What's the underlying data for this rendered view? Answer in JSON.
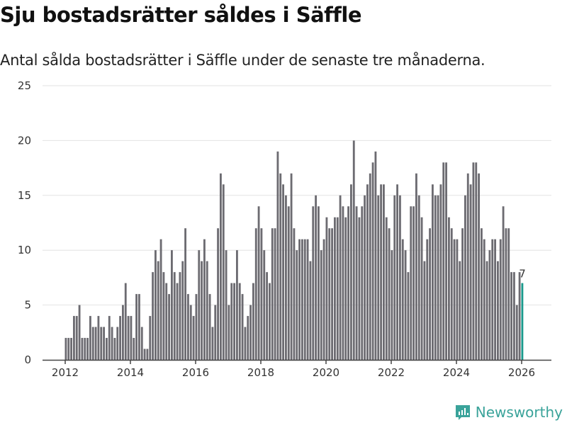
{
  "header": {
    "title": "Sju bostadsrätter såldes i Säffle",
    "subtitle": "Antal sålda bostadsrätter i Säffle under de senaste tre månaderna."
  },
  "footer": {
    "brand": "Newsworthy",
    "logo_icon": "bar-chart-speech-bubble-icon"
  },
  "colors": {
    "bar": "#6c6b71",
    "highlight": "#1a9a8c",
    "grid": "#e2e2e2",
    "axis": "#444444",
    "brand": "#3aa39a"
  },
  "chart_data": {
    "type": "bar",
    "title": "Sju bostadsrätter såldes i Säffle",
    "subtitle": "Antal sålda bostadsrätter i Säffle under de senaste tre månaderna.",
    "xlabel": "",
    "ylabel": "",
    "ylim": [
      0,
      25
    ],
    "yticks": [
      0,
      5,
      10,
      15,
      20,
      25
    ],
    "xticks": [
      "2012",
      "2014",
      "2016",
      "2018",
      "2020",
      "2022",
      "2024",
      "2026"
    ],
    "grid": true,
    "start": "2012-01",
    "frequency": "monthly",
    "highlight_last": true,
    "last_value_label": "7",
    "values": [
      2,
      2,
      2,
      4,
      4,
      5,
      2,
      2,
      2,
      4,
      3,
      3,
      4,
      3,
      3,
      2,
      4,
      3,
      2,
      3,
      4,
      5,
      7,
      4,
      4,
      2,
      6,
      6,
      3,
      1,
      1,
      4,
      8,
      10,
      9,
      11,
      8,
      7,
      6,
      10,
      8,
      7,
      8,
      9,
      12,
      6,
      5,
      4,
      6,
      10,
      9,
      11,
      9,
      6,
      3,
      5,
      12,
      17,
      16,
      10,
      5,
      7,
      7,
      10,
      7,
      6,
      3,
      4,
      5,
      7,
      12,
      14,
      12,
      10,
      8,
      7,
      12,
      12,
      19,
      17,
      16,
      15,
      14,
      17,
      12,
      10,
      11,
      11,
      11,
      11,
      9,
      14,
      15,
      14,
      10,
      11,
      13,
      12,
      12,
      13,
      13,
      15,
      14,
      13,
      14,
      16,
      20,
      14,
      13,
      14,
      15,
      16,
      17,
      18,
      19,
      15,
      16,
      16,
      13,
      12,
      10,
      15,
      16,
      15,
      11,
      10,
      8,
      14,
      14,
      17,
      15,
      13,
      9,
      11,
      12,
      16,
      15,
      15,
      16,
      18,
      18,
      13,
      12,
      11,
      11,
      9,
      12,
      15,
      17,
      16,
      18,
      18,
      17,
      12,
      11,
      9,
      10,
      11,
      11,
      9,
      11,
      14,
      12,
      12,
      8,
      8,
      5,
      8,
      7
    ]
  }
}
